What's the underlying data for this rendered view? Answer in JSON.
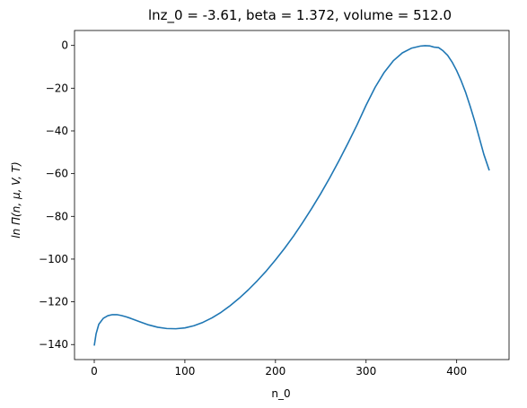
{
  "chart_data": {
    "type": "line",
    "title": "lnz_0 = -3.61, beta = 1.372, volume = 512.0",
    "xlabel": "n_0",
    "ylabel": "ln Π(n, μ, V, T)",
    "xlim": [
      -21.8,
      457.8
    ],
    "ylim": [
      -147.03,
      7.0
    ],
    "xticks": [
      0,
      100,
      200,
      300,
      400
    ],
    "yticks": [
      0,
      -20,
      -40,
      -60,
      -80,
      -100,
      -120,
      -140
    ],
    "grid": false,
    "series": [
      {
        "color": "#1f77b4",
        "x": [
          0,
          2,
          5,
          10,
          15,
          20,
          25,
          30,
          35,
          40,
          50,
          60,
          70,
          80,
          90,
          100,
          110,
          120,
          130,
          140,
          150,
          160,
          170,
          180,
          190,
          200,
          210,
          220,
          230,
          240,
          250,
          260,
          270,
          280,
          290,
          300,
          310,
          320,
          330,
          340,
          350,
          360,
          365,
          370,
          375,
          380,
          385,
          390,
          395,
          400,
          405,
          410,
          415,
          420,
          425,
          430,
          436
        ],
        "y": [
          -140.5,
          -135,
          -130.5,
          -127.7,
          -126.5,
          -126.0,
          -126.0,
          -126.4,
          -127.0,
          -127.7,
          -129.3,
          -130.8,
          -131.9,
          -132.5,
          -132.6,
          -132.2,
          -131.2,
          -129.6,
          -127.5,
          -124.9,
          -121.8,
          -118.3,
          -114.4,
          -110.1,
          -105.5,
          -100.4,
          -95.0,
          -89.2,
          -82.9,
          -76.3,
          -69.3,
          -61.9,
          -54.0,
          -45.8,
          -37.2,
          -28.0,
          -19.6,
          -12.6,
          -7.2,
          -3.5,
          -1.3,
          -0.3,
          -0.1,
          -0.2,
          -0.8,
          -1.0,
          -2.5,
          -4.6,
          -7.8,
          -11.8,
          -16.6,
          -22.1,
          -28.6,
          -35.6,
          -43.3,
          -51.0,
          -58.5
        ]
      }
    ]
  }
}
